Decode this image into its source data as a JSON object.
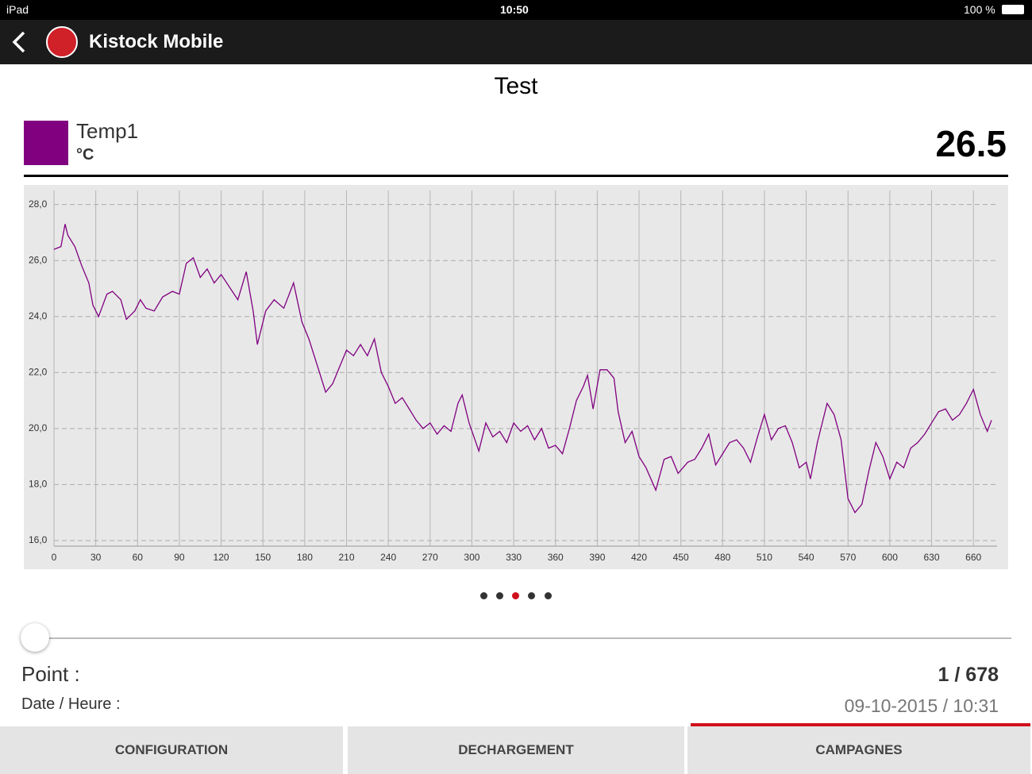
{
  "status_bar": {
    "device": "iPad",
    "time": "10:50",
    "battery": "100 %"
  },
  "header": {
    "app_title": "Kistock Mobile"
  },
  "chart_data": {
    "type": "line",
    "title": "Test",
    "unit": "°C",
    "current_value": "26.5",
    "x": [
      0,
      5,
      8,
      10,
      15,
      20,
      25,
      28,
      32,
      38,
      42,
      48,
      52,
      58,
      62,
      66,
      72,
      78,
      85,
      90,
      95,
      100,
      105,
      110,
      115,
      120,
      128,
      132,
      138,
      143,
      146,
      152,
      158,
      165,
      172,
      178,
      183,
      190,
      195,
      200,
      205,
      210,
      215,
      220,
      225,
      230,
      235,
      240,
      245,
      250,
      255,
      260,
      265,
      270,
      275,
      280,
      285,
      290,
      293,
      298,
      305,
      310,
      315,
      320,
      325,
      330,
      335,
      340,
      345,
      350,
      355,
      360,
      365,
      370,
      375,
      380,
      383,
      387,
      392,
      397,
      402,
      405,
      410,
      415,
      420,
      425,
      432,
      438,
      443,
      448,
      455,
      460,
      465,
      470,
      475,
      480,
      485,
      490,
      495,
      500,
      505,
      510,
      515,
      520,
      525,
      530,
      535,
      540,
      543,
      548,
      555,
      560,
      565,
      570,
      575,
      580,
      585,
      590,
      595,
      600,
      605,
      610,
      615,
      620,
      625,
      630,
      635,
      640,
      645,
      650,
      655,
      660,
      665,
      670,
      673
    ],
    "series": [
      {
        "name": "Temp1",
        "color": "#800080",
        "values": [
          26.4,
          26.5,
          27.3,
          26.9,
          26.5,
          25.8,
          25.2,
          24.4,
          24.0,
          24.8,
          24.9,
          24.6,
          23.9,
          24.2,
          24.6,
          24.3,
          24.2,
          24.7,
          24.9,
          24.8,
          25.9,
          26.1,
          25.4,
          25.7,
          25.2,
          25.5,
          24.9,
          24.6,
          25.6,
          24.2,
          23.0,
          24.2,
          24.6,
          24.3,
          25.2,
          23.8,
          23.2,
          22.1,
          21.3,
          21.6,
          22.2,
          22.8,
          22.6,
          23.0,
          22.6,
          23.2,
          22.0,
          21.5,
          20.9,
          21.1,
          20.7,
          20.3,
          20.0,
          20.2,
          19.8,
          20.1,
          19.9,
          20.9,
          21.2,
          20.2,
          19.2,
          20.2,
          19.7,
          19.9,
          19.5,
          20.2,
          19.9,
          20.1,
          19.6,
          20.0,
          19.3,
          19.4,
          19.1,
          20.0,
          21.0,
          21.5,
          21.9,
          20.7,
          22.1,
          22.1,
          21.8,
          20.6,
          19.5,
          19.9,
          19.0,
          18.6,
          17.8,
          18.9,
          19.0,
          18.4,
          18.8,
          18.9,
          19.3,
          19.8,
          18.7,
          19.1,
          19.5,
          19.6,
          19.3,
          18.8,
          19.7,
          20.5,
          19.6,
          20.0,
          20.1,
          19.5,
          18.6,
          18.8,
          18.2,
          19.5,
          20.9,
          20.5,
          19.6,
          17.5,
          17.0,
          17.3,
          18.5,
          19.5,
          19.0,
          18.2,
          18.8,
          18.6,
          19.3,
          19.5,
          19.8,
          20.2,
          20.6,
          20.7,
          20.3,
          20.5,
          20.9,
          21.4,
          20.5,
          19.9,
          20.3
        ]
      }
    ],
    "xlim": [
      0,
      677
    ],
    "ylim": [
      15.8,
      28.5
    ],
    "xticks": [
      0,
      30,
      60,
      90,
      120,
      150,
      180,
      210,
      240,
      270,
      300,
      330,
      360,
      390,
      420,
      450,
      480,
      510,
      540,
      570,
      600,
      630,
      660
    ],
    "yticks": [
      {
        "value": 16,
        "label": "16,0"
      },
      {
        "value": 18,
        "label": "18,0"
      },
      {
        "value": 20,
        "label": "20,0"
      },
      {
        "value": 22,
        "label": "22,0"
      },
      {
        "value": 24,
        "label": "24,0"
      },
      {
        "value": 26,
        "label": "26,0"
      },
      {
        "value": 28,
        "label": "28,0"
      }
    ],
    "grid": true
  },
  "details": {
    "point_label": "Point :",
    "point_value": "1 / 678",
    "date_label": "Date / Heure :",
    "date_value": "09-10-2015 / 10:31"
  },
  "tabs": [
    "CONFIGURATION",
    "DECHARGEMENT",
    "CAMPAGNES"
  ]
}
